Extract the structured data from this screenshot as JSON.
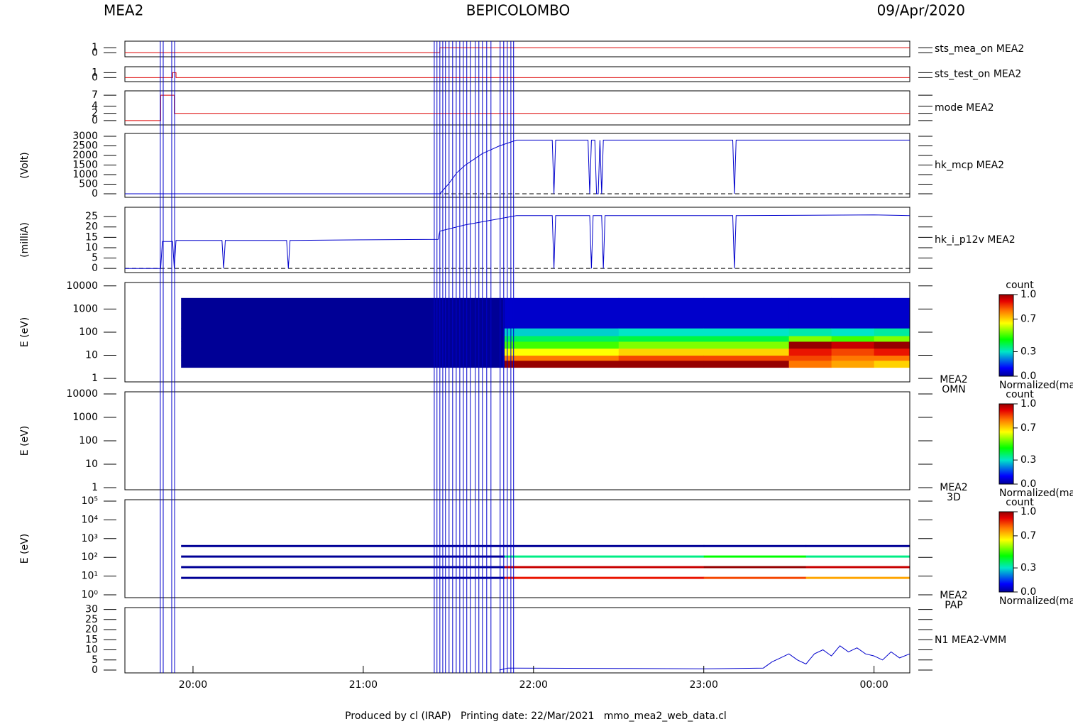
{
  "header": {
    "left": "MEA2",
    "center": "BEPICOLOMBO",
    "right": "09/Apr/2020"
  },
  "footer": "Produced by cl (IRAP)   Printing date: 22/Mar/2021   mmo_mea2_web_data.cl",
  "events": {
    "color": "#0000cc",
    "x": [
      19.808,
      19.825,
      19.875,
      19.892,
      21.417,
      21.433,
      21.45,
      21.467,
      21.483,
      21.504,
      21.525,
      21.546,
      21.567,
      21.588,
      21.608,
      21.629,
      21.658,
      21.679,
      21.7,
      21.725,
      21.75,
      21.804,
      21.825,
      21.846,
      21.867,
      21.883
    ]
  },
  "chart_data": [
    {
      "type": "line",
      "xlim": [
        19.6,
        24.21
      ],
      "ylim": [
        -0.8,
        2.3
      ],
      "yticks": [
        0,
        1
      ],
      "series": [
        {
          "name": "sts_mea_on MEA2",
          "color": "#dd0000",
          "x": [
            19.6,
            21.45,
            21.45,
            24.21
          ],
          "values": [
            0,
            0,
            1,
            1
          ]
        }
      ]
    },
    {
      "type": "line",
      "xlim": [
        19.6,
        24.21
      ],
      "ylim": [
        -0.8,
        2.2
      ],
      "yticks": [
        0,
        1
      ],
      "series": [
        {
          "name": "sts_test_on MEA2",
          "color": "#dd0000",
          "x": [
            19.6,
            19.88,
            19.88,
            19.9,
            19.9,
            24.21
          ],
          "values": [
            0,
            0,
            1,
            1,
            0,
            0
          ]
        }
      ]
    },
    {
      "type": "line",
      "xlim": [
        19.6,
        24.21
      ],
      "ylim": [
        -1.2,
        8.2
      ],
      "yticks": [
        0,
        2,
        4,
        7
      ],
      "series": [
        {
          "name": "mode MEA2",
          "color": "#dd0000",
          "x": [
            19.6,
            19.81,
            19.81,
            19.89,
            19.89,
            24.21
          ],
          "values": [
            0,
            0,
            7,
            7,
            2,
            2
          ]
        }
      ]
    },
    {
      "type": "line",
      "ylabel": "(Volt)",
      "xlim": [
        19.6,
        24.21
      ],
      "ylim": [
        -185,
        3150
      ],
      "yticks": [
        0,
        500,
        1000,
        1500,
        2000,
        2500,
        3000
      ],
      "zero_line": true,
      "series": [
        {
          "name": "hk_mcp MEA2",
          "color": "#0000cc",
          "x": [
            19.6,
            21.45,
            21.5,
            21.55,
            21.6,
            21.65,
            21.7,
            21.75,
            21.8,
            21.85,
            21.9,
            22.11,
            22.12,
            22.13,
            22.32,
            22.33,
            22.34,
            22.36,
            22.37,
            22.38,
            22.39,
            22.4,
            22.41,
            23.17,
            23.18,
            23.19,
            24.21
          ],
          "values": [
            0,
            0,
            500,
            1100,
            1500,
            1800,
            2100,
            2300,
            2500,
            2650,
            2800,
            2800,
            0,
            2800,
            2800,
            0,
            2800,
            2800,
            0,
            0,
            2800,
            0,
            2800,
            2800,
            0,
            2800,
            2800
          ]
        }
      ]
    },
    {
      "type": "line",
      "ylabel": "(milliA)",
      "xlim": [
        19.6,
        24.21
      ],
      "ylim": [
        -2,
        29.5
      ],
      "yticks": [
        0,
        5,
        10,
        15,
        20,
        25
      ],
      "zero_line": true,
      "series": [
        {
          "name": "hk_i_p12v MEA2",
          "color": "#0000cc",
          "x": [
            19.6,
            19.81,
            19.82,
            19.88,
            19.89,
            19.9,
            20.17,
            20.18,
            20.19,
            20.55,
            20.56,
            20.57,
            21.0,
            21.44,
            21.45,
            21.6,
            21.8,
            21.9,
            22.11,
            22.12,
            22.13,
            22.33,
            22.34,
            22.35,
            22.4,
            22.41,
            22.42,
            23.17,
            23.18,
            23.19,
            24.0,
            24.21
          ],
          "values": [
            0,
            0,
            13,
            13,
            0,
            13.5,
            13.5,
            0,
            13.5,
            13.5,
            0,
            13.5,
            13.8,
            14,
            18,
            21,
            24,
            25.5,
            25.5,
            0,
            25.5,
            25.5,
            0,
            25.5,
            25.5,
            0,
            25.5,
            25.5,
            0,
            25.5,
            25.8,
            25.5
          ]
        }
      ]
    },
    {
      "type": "heatmap",
      "ylabel": "E (eV)",
      "name": "MEA2",
      "product": "OMN",
      "log": true,
      "xlim": [
        19.6,
        24.21
      ],
      "ylim": [
        0.71,
        14000
      ],
      "yticks": [
        1,
        10,
        100,
        1000,
        10000
      ],
      "x_edges": [
        19.93,
        21.83,
        22.5,
        23.0,
        23.5,
        23.75,
        24.0,
        24.21
      ],
      "y_edges": [
        3,
        6,
        10,
        20,
        40,
        70,
        150,
        3000
      ],
      "z": [
        [
          0,
          0,
          0,
          0,
          0,
          0,
          0
        ],
        [
          1.0,
          0.8,
          0.65,
          0.5,
          0.38,
          0.28,
          0.05
        ],
        [
          1.0,
          0.85,
          0.7,
          0.55,
          0.4,
          0.3,
          0.05
        ],
        [
          1.0,
          0.85,
          0.7,
          0.55,
          0.4,
          0.3,
          0.05
        ],
        [
          0.8,
          0.85,
          0.9,
          1.0,
          0.55,
          0.32,
          0.05
        ],
        [
          0.75,
          0.8,
          0.85,
          0.95,
          0.5,
          0.3,
          0.05
        ],
        [
          0.7,
          0.8,
          0.9,
          1.0,
          0.55,
          0.33,
          0.05
        ]
      ],
      "colorbar": {
        "title": "count",
        "label": "Normalized(max)",
        "lim": [
          0,
          1
        ],
        "ticks": [
          {
            "value": 0,
            "label": "0.0"
          },
          0.3,
          0.7,
          {
            "value": 1,
            "label": "1.0"
          }
        ]
      }
    },
    {
      "type": "heatmap",
      "ylabel": "E (eV)",
      "name": "MEA2",
      "product": "3D",
      "log": true,
      "xlim": [
        19.6,
        24.21
      ],
      "ylim": [
        0.81,
        12300
      ],
      "yticks": [
        1,
        10,
        100,
        1000,
        10000
      ],
      "colorbar": {
        "title": "count",
        "label": "Normalized(max)",
        "lim": [
          0,
          1
        ],
        "ticks": [
          {
            "value": 0,
            "label": "0.0"
          },
          0.3,
          0.7,
          {
            "value": 1,
            "label": "1.0"
          }
        ]
      }
    },
    {
      "type": "stripes",
      "ylabel": "E (eV)",
      "name": "MEA2",
      "product": "PAP",
      "log": true,
      "xlim": [
        19.6,
        24.21
      ],
      "ylim": [
        0.705,
        119000
      ],
      "yticks": [
        {
          "value": 1,
          "label": "10⁰"
        },
        {
          "value": 10,
          "label": "10¹"
        },
        {
          "value": 100,
          "label": "10²"
        },
        {
          "value": 1000,
          "label": "10³"
        },
        {
          "value": 10000,
          "label": "10⁴"
        },
        {
          "value": 100000,
          "label": "10⁵"
        }
      ],
      "energies": [
        400,
        110,
        30,
        8
      ],
      "x_edges": [
        19.93,
        21.83,
        23.0,
        23.6,
        24.21
      ],
      "z": [
        [
          0,
          0,
          0,
          0
        ],
        [
          0,
          0.35,
          0.45,
          0.35
        ],
        [
          0,
          0.95,
          1.0,
          0.95
        ],
        [
          0,
          0.9,
          0.85,
          0.75
        ]
      ],
      "colorbar": {
        "title": "count",
        "label": "Normalized(max)",
        "lim": [
          0,
          1
        ],
        "ticks": [
          {
            "value": 0,
            "label": "0.0"
          },
          0.3,
          0.7,
          {
            "value": 1,
            "label": "1.0"
          }
        ]
      }
    },
    {
      "type": "line",
      "xlim": [
        19.6,
        24.21
      ],
      "ylim": [
        -1.4,
        30.9
      ],
      "yticks": [
        0,
        5,
        10,
        15,
        20,
        25,
        30
      ],
      "xticks": [
        {
          "value": 20,
          "label": "20:00"
        },
        {
          "value": 21,
          "label": "21:00"
        },
        {
          "value": 22,
          "label": "22:00"
        },
        {
          "value": 23,
          "label": "23:00"
        },
        {
          "value": 24,
          "label": "00:00"
        }
      ],
      "series": [
        {
          "name": "N1 MEA2-VMM",
          "color": "#0000cc",
          "x": [
            21.8,
            21.85,
            22.5,
            23.0,
            23.35,
            23.4,
            23.45,
            23.5,
            23.55,
            23.6,
            23.65,
            23.7,
            23.75,
            23.8,
            23.85,
            23.9,
            23.95,
            24.0,
            24.05,
            24.1,
            24.15,
            24.21
          ],
          "values": [
            0,
            1,
            0.8,
            0.6,
            1,
            4,
            6,
            8,
            5,
            3,
            8,
            10,
            7,
            12,
            9,
            11,
            8,
            7,
            5,
            9,
            6,
            8
          ]
        }
      ]
    }
  ]
}
